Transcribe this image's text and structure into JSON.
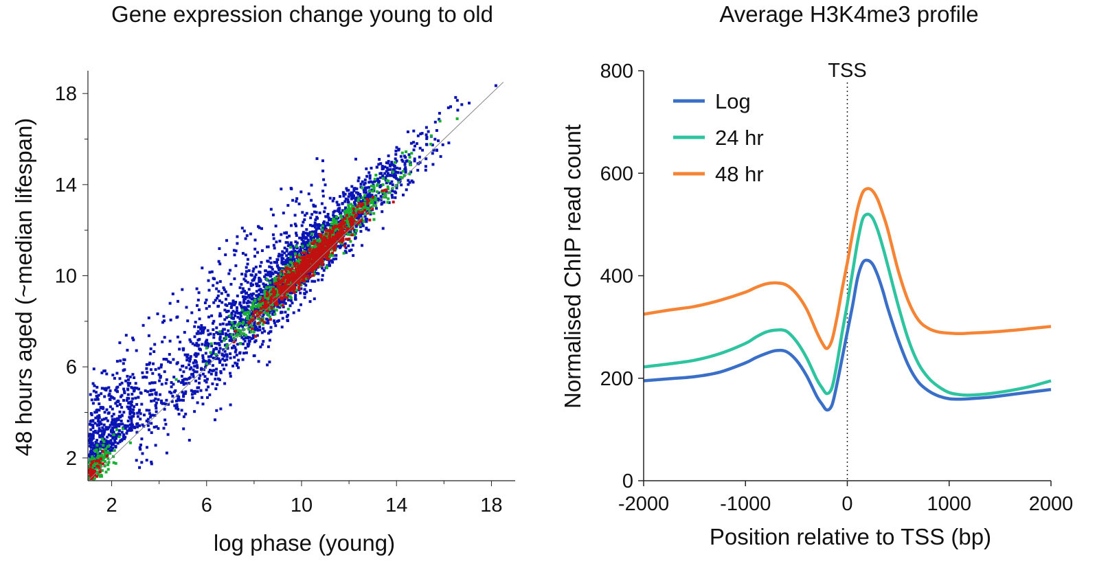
{
  "chart_data": [
    {
      "type": "scatter",
      "title": "Gene expression change young to old",
      "xlabel": "log phase (young)",
      "ylabel": "48 hours aged (~median lifespan)",
      "xlim": [
        1,
        19
      ],
      "ylim": [
        1,
        19
      ],
      "xticks": [
        "2",
        "6",
        "10",
        "14",
        "18"
      ],
      "xtick_values": [
        2,
        6,
        10,
        14,
        18
      ],
      "yticks": [
        "2",
        "6",
        "10",
        "14",
        "18"
      ],
      "ytick_values": [
        2,
        6,
        10,
        14,
        18
      ],
      "reference_line": "y = x",
      "grid": false,
      "colors": {
        "low_density": "#0a14b4",
        "mid_density": "#18b030",
        "high_density": "#c01010"
      },
      "density_regions": [
        {
          "density": "high",
          "x": [
            8,
            13
          ],
          "center": [
            10.5,
            10.5
          ]
        },
        {
          "density": "mid",
          "x": [
            7,
            15
          ],
          "center": [
            10.5,
            10.4
          ]
        }
      ]
    },
    {
      "type": "line",
      "title": "Average H3K4me3 profile",
      "xlabel": "Position relative to TSS (bp)",
      "ylabel": "Normalised ChIP read count",
      "xlim": [
        -2000,
        2000
      ],
      "ylim": [
        0,
        800
      ],
      "xticks": [
        "-2000",
        "-1000",
        "0",
        "1000",
        "2000"
      ],
      "xtick_values": [
        -2000,
        -1000,
        0,
        1000,
        2000
      ],
      "yticks": [
        "0",
        "200",
        "400",
        "600",
        "800"
      ],
      "ytick_values": [
        0,
        200,
        400,
        600,
        800
      ],
      "annotation": {
        "label": "TSS",
        "x": 0
      },
      "legend": "top-left",
      "grid": false,
      "x": [
        -2000,
        -1750,
        -1500,
        -1250,
        -1000,
        -900,
        -800,
        -700,
        -600,
        -500,
        -400,
        -300,
        -250,
        -200,
        -150,
        -100,
        -50,
        0,
        50,
        100,
        150,
        200,
        250,
        300,
        350,
        400,
        500,
        600,
        700,
        800,
        900,
        1000,
        1100,
        1200,
        1400,
        1600,
        1800,
        2000
      ],
      "series": [
        {
          "name": "Log",
          "color": "#3a6fc8",
          "values": [
            195,
            199,
            203,
            212,
            230,
            240,
            248,
            254,
            252,
            235,
            205,
            165,
            150,
            138,
            148,
            190,
            240,
            290,
            340,
            395,
            425,
            430,
            422,
            400,
            370,
            335,
            275,
            225,
            192,
            175,
            165,
            160,
            159,
            160,
            163,
            168,
            173,
            178
          ]
        },
        {
          "name": "24 hr",
          "color": "#2ec4a0",
          "values": [
            222,
            228,
            235,
            248,
            268,
            280,
            290,
            294,
            292,
            272,
            240,
            198,
            182,
            170,
            182,
            230,
            290,
            345,
            405,
            465,
            510,
            520,
            512,
            488,
            455,
            418,
            342,
            275,
            228,
            200,
            183,
            172,
            168,
            167,
            170,
            176,
            184,
            195
          ]
        },
        {
          "name": "48 hr",
          "color": "#f58535",
          "values": [
            325,
            333,
            340,
            352,
            368,
            377,
            384,
            386,
            382,
            365,
            335,
            290,
            270,
            258,
            275,
            320,
            375,
            425,
            480,
            530,
            562,
            570,
            565,
            548,
            520,
            488,
            410,
            350,
            313,
            297,
            290,
            288,
            287,
            288,
            290,
            293,
            297,
            301
          ]
        }
      ]
    }
  ]
}
